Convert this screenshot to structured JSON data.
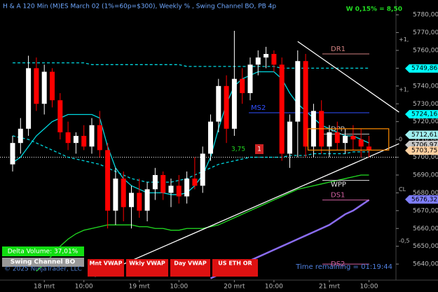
{
  "header": {
    "title": "H & A 120 Min (M)ES March 02  (1%=60p=$300), Weekly % , Swing Channel BO, PB 4p",
    "weekly": "W 0,15% = 8,50"
  },
  "chart_data": {
    "type": "candlestick",
    "categories": [
      null,
      null,
      null,
      null,
      "18 mrt",
      null,
      null,
      null,
      null,
      "10:00",
      null,
      null,
      null,
      null,
      null,
      null,
      "19 mrt",
      null,
      null,
      null,
      null,
      "10:00",
      null,
      null,
      null,
      null,
      null,
      null,
      "20 mrt",
      null,
      null,
      null,
      null,
      "10:00",
      null,
      null,
      null,
      null,
      null,
      null,
      "21 mrt",
      null,
      null,
      null,
      null,
      "10:00"
    ],
    "open": [
      5696,
      5708,
      5716,
      5750,
      5730,
      5748,
      5732,
      5714,
      5708,
      5712,
      5706,
      5718,
      5704,
      5670,
      5688,
      5672,
      5680,
      5670,
      5682,
      5690,
      5680,
      5684,
      5678,
      5688,
      5684,
      5702,
      5720,
      5740,
      5716,
      5744,
      5736,
      5752,
      5756,
      5758,
      5752,
      5702,
      5720,
      5754,
      5706,
      5726,
      5706,
      5714,
      5708,
      5712,
      5710,
      5706
    ],
    "high": [
      5712,
      5722,
      5757,
      5756,
      5752,
      5750,
      5736,
      5720,
      5714,
      5718,
      5722,
      5726,
      5708,
      5694,
      5692,
      5684,
      5688,
      5686,
      5694,
      5692,
      5688,
      5690,
      5692,
      5700,
      5706,
      5724,
      5744,
      5746,
      5771,
      5750,
      5756,
      5760,
      5762,
      5760,
      5756,
      5724,
      5760,
      5758,
      5730,
      5732,
      5718,
      5720,
      5716,
      5718,
      5716,
      5712
    ],
    "low": [
      5692,
      5702,
      5712,
      5726,
      5724,
      5728,
      5710,
      5704,
      5702,
      5704,
      5702,
      5700,
      5660,
      5662,
      5664,
      5660,
      5666,
      5664,
      5676,
      5676,
      5672,
      5674,
      5674,
      5682,
      5680,
      5698,
      5714,
      5708,
      5712,
      5730,
      5732,
      5746,
      5750,
      5748,
      5698,
      5694,
      5700,
      5700,
      5700,
      5702,
      5700,
      5704,
      5702,
      5704,
      5700,
      5700
    ],
    "close": [
      5708,
      5716,
      5750,
      5730,
      5748,
      5732,
      5714,
      5708,
      5712,
      5706,
      5718,
      5704,
      5670,
      5688,
      5672,
      5680,
      5670,
      5682,
      5690,
      5680,
      5684,
      5678,
      5688,
      5684,
      5702,
      5720,
      5740,
      5716,
      5744,
      5736,
      5752,
      5756,
      5758,
      5752,
      5702,
      5720,
      5754,
      5706,
      5726,
      5706,
      5714,
      5708,
      5712,
      5710,
      5706,
      5703.75
    ],
    "up_color": "#ffffff",
    "down_color": "#ff0000",
    "ylim": [
      5631,
      5788.3
    ],
    "yticks": [
      {
        "value": 5780,
        "label": "5780,00"
      },
      {
        "value": 5770,
        "label": "5770,00"
      },
      {
        "value": 5760,
        "label": "5760,00"
      },
      {
        "value": 5750,
        "label": "5750,00"
      },
      {
        "value": 5740,
        "label": "5740,00"
      },
      {
        "value": 5730,
        "label": "5730,00"
      },
      {
        "value": 5720,
        "label": "5720,00"
      },
      {
        "value": 5710,
        "label": "5710,00"
      },
      {
        "value": 5700,
        "label": "5700,00"
      },
      {
        "value": 5690,
        "label": "5690,00"
      },
      {
        "value": 5680,
        "label": "5680,00"
      },
      {
        "value": 5670,
        "label": "5670,00"
      },
      {
        "value": 5660,
        "label": "5660,00"
      },
      {
        "value": 5650,
        "label": "5650,00"
      },
      {
        "value": 5640,
        "label": "5640,00"
      }
    ],
    "indicators": [
      {
        "color": "#00d8e0",
        "dash": true,
        "values": [
          5753,
          5753,
          5753,
          5753,
          5753,
          5753,
          5753,
          5753,
          5753,
          5753,
          5752,
          5752,
          5752,
          5752,
          5752,
          5752,
          5752,
          5752,
          5752,
          5752,
          5752,
          5752,
          5751,
          5751,
          5751,
          5751,
          5751,
          5751,
          5751,
          5751,
          5751,
          5751,
          5751,
          5751,
          5750,
          5750,
          5750,
          5750,
          5750,
          5750,
          5750,
          5750,
          5750,
          5750,
          5750,
          5750
        ]
      },
      {
        "color": "#00d8e0",
        "dash": false,
        "values": [
          5697,
          5700,
          5706,
          5712,
          5716,
          5720,
          5722,
          5724,
          5724,
          5724,
          5724,
          5722,
          5706,
          5694,
          5688,
          5684,
          5682,
          5680,
          5680,
          5680,
          5679,
          5679,
          5680,
          5684,
          5690,
          5700,
          5716,
          5730,
          5740,
          5744,
          5746,
          5748,
          5748,
          5748,
          5744,
          5736,
          5730,
          5726,
          5722,
          5718,
          5716,
          5714,
          5712,
          5712,
          5710,
          5708
        ]
      },
      {
        "color": "#00d8e0",
        "dash": true,
        "values": [
          5712,
          5711,
          5710,
          5708,
          5706,
          5704,
          5702,
          5700,
          5699,
          5698,
          5697,
          5696,
          5694,
          5692,
          5690,
          5688,
          5687,
          5686,
          5686,
          5686,
          5686,
          5687,
          5688,
          5690,
          5692,
          5694,
          5696,
          5697,
          5698,
          5699,
          5700,
          5700,
          5700,
          5700,
          5700,
          5701,
          5701,
          5701,
          5702,
          5702,
          5702,
          5702,
          5702,
          5703,
          5703,
          5703
        ]
      },
      {
        "color": "#22dd22",
        "dash": false,
        "values": [
          null,
          null,
          null,
          5636,
          5640,
          5645,
          5650,
          5654,
          5657,
          5659,
          5660,
          5661,
          5662,
          5662,
          5662,
          5662,
          5661,
          5661,
          5660,
          5660,
          5659,
          5659,
          5660,
          5660,
          5660,
          5661,
          5662,
          5664,
          5666,
          5668,
          5670,
          5672,
          5674,
          5676,
          5678,
          5680,
          5682,
          5683,
          5684,
          5685,
          5686,
          5687,
          5688,
          5689,
          5690,
          5690
        ]
      },
      {
        "color": "#8a6cf0",
        "dash": false,
        "values": [
          null,
          null,
          null,
          null,
          null,
          null,
          null,
          null,
          null,
          null,
          null,
          null,
          null,
          null,
          null,
          null,
          null,
          null,
          null,
          null,
          null,
          null,
          null,
          null,
          null,
          5632,
          5634,
          5636,
          5638,
          5640,
          5642,
          5644,
          5646,
          5648,
          5650,
          5652,
          5654,
          5656,
          5658,
          5660,
          5662,
          5665,
          5668,
          5670,
          5673,
          5676
        ]
      }
    ],
    "levels": [
      {
        "label": "DR1",
        "value": 5758,
        "color": "#d08080"
      },
      {
        "label": "MS2",
        "value": 5725,
        "color": "#3050ff"
      },
      {
        "label": "DPP",
        "value": 5713,
        "color": "#c0c0c0"
      },
      {
        "label": "WPP",
        "value": 5687,
        "color": "#e0e0e0"
      },
      {
        "label": "DS1",
        "value": 5676,
        "color": "#d060a0"
      },
      {
        "label": "DS2",
        "value": 5640,
        "color": "#d060a0"
      }
    ],
    "price_markers": [
      {
        "value": 5749.86,
        "label": "5749,86",
        "color": "#00ffff"
      },
      {
        "value": 5724.16,
        "label": "5724,16",
        "color": "#00ffff"
      },
      {
        "value": 5712.61,
        "label": "5712,61",
        "color": "#a0f0f0"
      },
      {
        "value": 5706.97,
        "label": "5706,97",
        "color": "#c8c8c8"
      },
      {
        "value": 5703.75,
        "label": "5703,75",
        "color": "#ffd0a0"
      },
      {
        "value": 5676.32,
        "label": "5676,32",
        "color": "#8080ff"
      }
    ],
    "scale_marks": [
      {
        "value": 5766,
        "label": "+1,"
      },
      {
        "value": 5738,
        "label": "+1,"
      },
      {
        "value": 5710,
        "label": "0"
      },
      {
        "value": 5682,
        "label": "CL"
      },
      {
        "value": 5653,
        "label": "-0,5"
      }
    ],
    "trendlines": [
      {
        "color": "#ffffff",
        "x": [
          36,
          48.8
        ],
        "y": [
          5765,
          5725.3
        ]
      },
      {
        "color": "#ffffff",
        "x": [
          10.4,
          48.8
        ],
        "y": [
          5633,
          5707.6
        ]
      }
    ],
    "box": {
      "x": [
        37.3,
        47.5
      ],
      "y": [
        5704,
        5716
      ],
      "color": "#ff8c00"
    },
    "dotted_line": 5700,
    "annotations": [
      "3,75",
      "1"
    ]
  },
  "footer": {
    "delta": "Delta Volume: 37,01%",
    "indicator": "Swing Channel BO",
    "copyright": "© 2025 NinjaTrader, LLC",
    "buttons": [
      "Mnt VWAP",
      "Wkly VWAP",
      "Day VWAP",
      "US ETH OR"
    ],
    "time_remaining": "Time remaining = 01:19:44"
  }
}
